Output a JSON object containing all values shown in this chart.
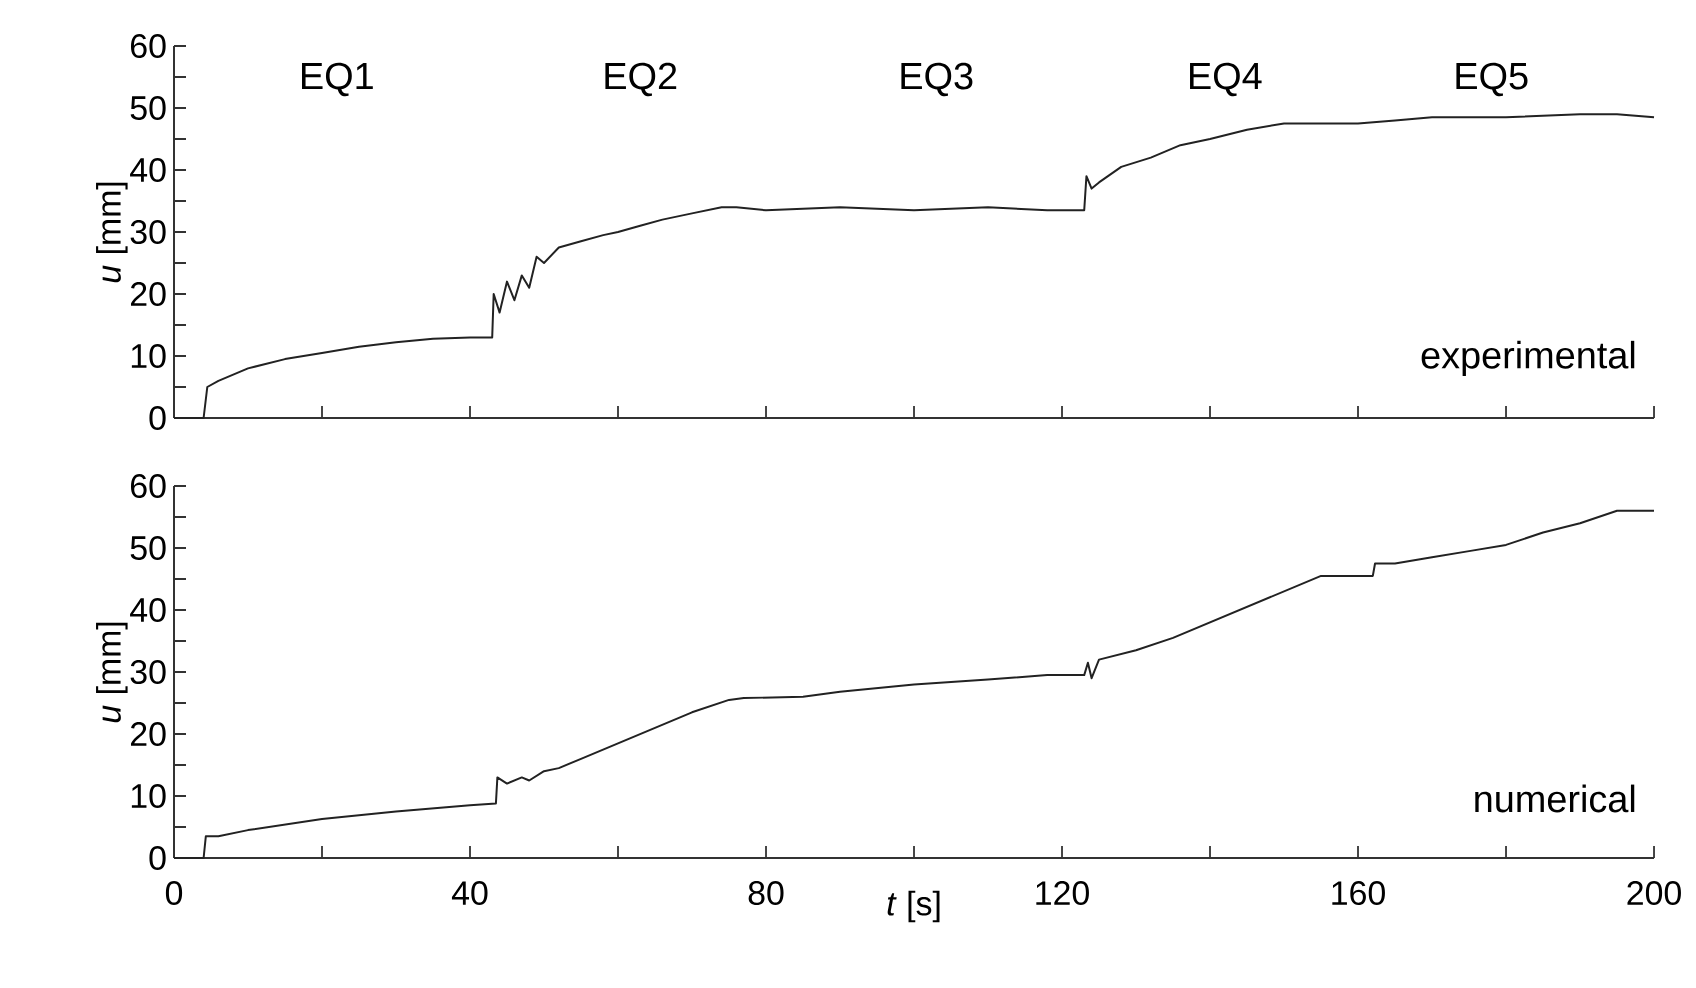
{
  "chart_data": [
    {
      "type": "line",
      "ylabel": "*u* [mm]",
      "color": "#222222",
      "tick_labels": "y",
      "annotations": [
        "EQ1",
        "EQ2",
        "EQ3",
        "EQ4",
        "EQ5",
        "experimental"
      ],
      "xlim": [
        0,
        200
      ],
      "ylim": [
        0,
        60
      ],
      "xticks": [
        0,
        {
          "value": 20,
          "label": null
        },
        40,
        {
          "value": 60,
          "label": null
        },
        80,
        {
          "value": 100,
          "label": null
        },
        120,
        {
          "value": 140,
          "label": null
        },
        160,
        {
          "value": 180,
          "label": null
        },
        200
      ],
      "yticks": [
        0,
        {
          "value": 5,
          "label": null
        },
        10,
        {
          "value": 15,
          "label": null
        },
        20,
        {
          "value": 25,
          "label": null
        },
        30,
        {
          "value": 35,
          "label": null
        },
        40,
        {
          "value": 45,
          "label": null
        },
        50,
        {
          "value": 55,
          "label": null
        },
        60
      ],
      "x": [
        0,
        4,
        4.5,
        6,
        10,
        15,
        20,
        25,
        30,
        35,
        40,
        43,
        43.2,
        44,
        45,
        46,
        47,
        48,
        49,
        50,
        52,
        55,
        58,
        60,
        63,
        66,
        70,
        74,
        76,
        80,
        90,
        100,
        110,
        118,
        123,
        123.3,
        124,
        125,
        128,
        132,
        136,
        140,
        145,
        150,
        155,
        160,
        165,
        170,
        180,
        190,
        195,
        200
      ],
      "values": [
        0,
        0,
        5,
        6,
        8,
        9.5,
        10.5,
        11.5,
        12.2,
        12.8,
        13,
        13,
        20,
        17,
        22,
        19,
        23,
        21,
        26,
        25,
        27.5,
        28.5,
        29.5,
        30,
        31,
        32,
        33,
        34,
        34,
        33.5,
        34,
        33.5,
        34,
        33.5,
        33.5,
        39,
        37,
        38,
        40.5,
        42,
        44,
        45,
        46.5,
        47.5,
        47.5,
        47.5,
        48,
        48.5,
        48.5,
        49,
        49,
        48.5
      ]
    },
    {
      "type": "line",
      "xlabel": "*t* [s]",
      "ylabel": "*u* [mm]",
      "color": "#222222",
      "annotations": [
        "numerical"
      ],
      "xlim": [
        0,
        200
      ],
      "ylim": [
        0,
        60
      ],
      "xticks": [
        0,
        {
          "value": 20,
          "label": null
        },
        40,
        {
          "value": 60,
          "label": null
        },
        80,
        {
          "value": 100,
          "label": null
        },
        120,
        {
          "value": 140,
          "label": null
        },
        160,
        {
          "value": 180,
          "label": null
        },
        200
      ],
      "yticks": [
        0,
        {
          "value": 5,
          "label": null
        },
        10,
        {
          "value": 15,
          "label": null
        },
        20,
        {
          "value": 25,
          "label": null
        },
        30,
        {
          "value": 35,
          "label": null
        },
        40,
        {
          "value": 45,
          "label": null
        },
        50,
        {
          "value": 55,
          "label": null
        },
        60
      ],
      "x": [
        0,
        4,
        4.3,
        6,
        10,
        20,
        30,
        40,
        43.5,
        43.7,
        45,
        47,
        48,
        50,
        52,
        55,
        60,
        65,
        70,
        75,
        77,
        85,
        90,
        100,
        110,
        118,
        123,
        123.5,
        124,
        125,
        130,
        135,
        140,
        145,
        150,
        155,
        160,
        162,
        162.3,
        165,
        170,
        175,
        180,
        185,
        190,
        195,
        200
      ],
      "values": [
        0,
        0,
        3.5,
        3.5,
        4.5,
        6.3,
        7.5,
        8.5,
        8.8,
        13,
        12,
        13,
        12.5,
        14,
        14.5,
        16,
        18.5,
        21,
        23.5,
        25.5,
        25.8,
        26,
        26.8,
        28,
        28.8,
        29.5,
        29.5,
        31.5,
        29,
        32,
        33.5,
        35.5,
        38,
        40.5,
        43,
        45.5,
        45.5,
        45.5,
        47.5,
        47.5,
        48.5,
        49.5,
        50.5,
        52.5,
        54,
        56,
        56
      ]
    }
  ]
}
